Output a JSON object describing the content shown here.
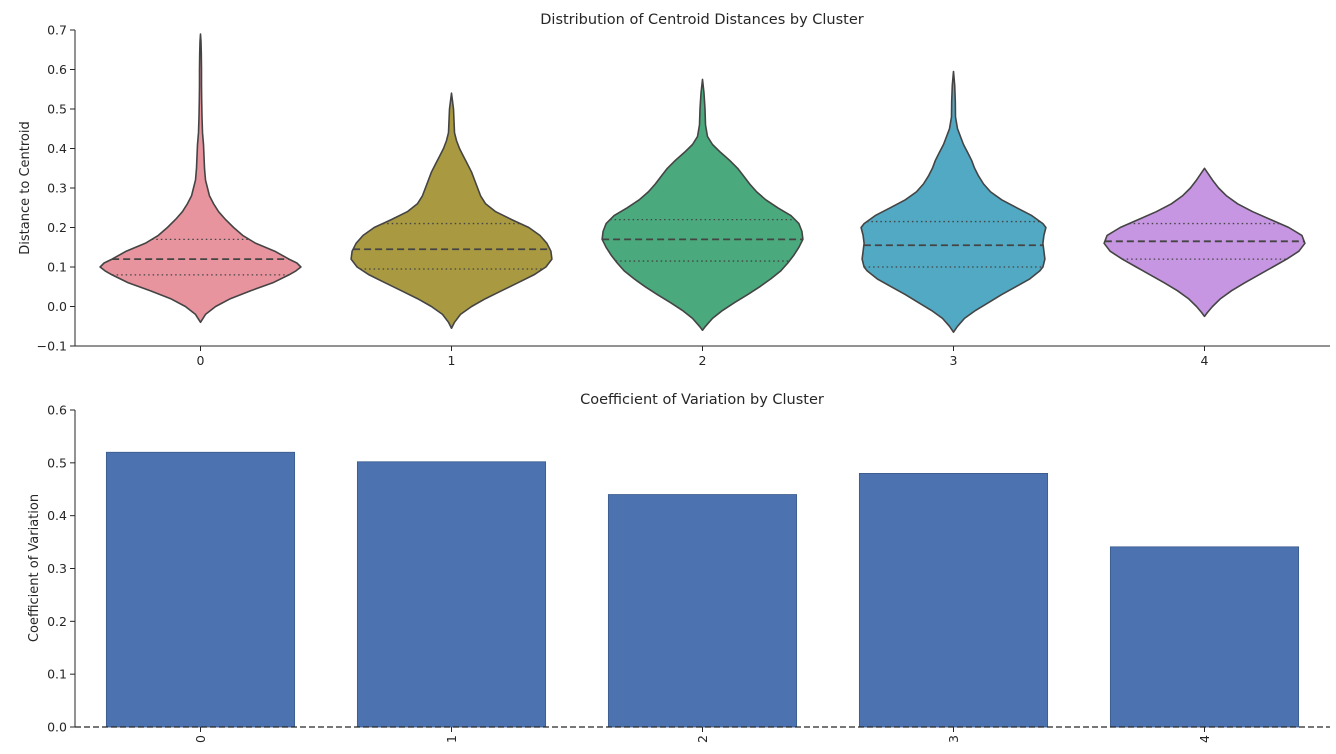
{
  "chart_data": [
    {
      "type": "violin",
      "title": "Distribution of Centroid Distances by Cluster",
      "xlabel": "",
      "ylabel": "Distance to Centroid",
      "ylim": [
        -0.1,
        0.7
      ],
      "yticks": [
        -0.1,
        0.0,
        0.1,
        0.2,
        0.3,
        0.4,
        0.5,
        0.6,
        0.7
      ],
      "ytick_labels": [
        "−0.1",
        "0.0",
        "0.1",
        "0.2",
        "0.3",
        "0.4",
        "0.5",
        "0.6",
        "0.7"
      ],
      "categories": [
        "0",
        "1",
        "2",
        "3",
        "4"
      ],
      "colors": [
        "#e8949e",
        "#a99a41",
        "#4aaa7d",
        "#52a9c3",
        "#c796e2"
      ],
      "grid": false,
      "series": [
        {
          "category": "0",
          "min": -0.04,
          "max": 0.69,
          "q1": 0.08,
          "median": 0.12,
          "q3": 0.17,
          "profile": [
            [
              -0.04,
              0.0
            ],
            [
              -0.02,
              0.05
            ],
            [
              0.0,
              0.15
            ],
            [
              0.02,
              0.3
            ],
            [
              0.04,
              0.5
            ],
            [
              0.06,
              0.72
            ],
            [
              0.08,
              0.88
            ],
            [
              0.09,
              0.95
            ],
            [
              0.1,
              1.0
            ],
            [
              0.11,
              0.96
            ],
            [
              0.12,
              0.88
            ],
            [
              0.14,
              0.74
            ],
            [
              0.16,
              0.55
            ],
            [
              0.18,
              0.42
            ],
            [
              0.2,
              0.33
            ],
            [
              0.22,
              0.25
            ],
            [
              0.24,
              0.18
            ],
            [
              0.26,
              0.13
            ],
            [
              0.28,
              0.09
            ],
            [
              0.3,
              0.07
            ],
            [
              0.32,
              0.05
            ],
            [
              0.35,
              0.04
            ],
            [
              0.38,
              0.035
            ],
            [
              0.41,
              0.03
            ],
            [
              0.44,
              0.02
            ],
            [
              0.48,
              0.015
            ],
            [
              0.52,
              0.012
            ],
            [
              0.56,
              0.01
            ],
            [
              0.6,
              0.01
            ],
            [
              0.64,
              0.008
            ],
            [
              0.67,
              0.005
            ],
            [
              0.69,
              0.0
            ]
          ]
        },
        {
          "category": "1",
          "min": -0.055,
          "max": 0.54,
          "q1": 0.095,
          "median": 0.145,
          "q3": 0.21,
          "profile": [
            [
              -0.055,
              0.0
            ],
            [
              -0.04,
              0.03
            ],
            [
              -0.02,
              0.09
            ],
            [
              0.0,
              0.2
            ],
            [
              0.02,
              0.34
            ],
            [
              0.04,
              0.5
            ],
            [
              0.06,
              0.66
            ],
            [
              0.08,
              0.82
            ],
            [
              0.1,
              0.94
            ],
            [
              0.12,
              1.0
            ],
            [
              0.14,
              0.99
            ],
            [
              0.16,
              0.95
            ],
            [
              0.18,
              0.88
            ],
            [
              0.2,
              0.77
            ],
            [
              0.22,
              0.6
            ],
            [
              0.24,
              0.44
            ],
            [
              0.26,
              0.34
            ],
            [
              0.28,
              0.29
            ],
            [
              0.3,
              0.26
            ],
            [
              0.32,
              0.23
            ],
            [
              0.34,
              0.2
            ],
            [
              0.36,
              0.16
            ],
            [
              0.38,
              0.12
            ],
            [
              0.4,
              0.08
            ],
            [
              0.42,
              0.05
            ],
            [
              0.44,
              0.03
            ],
            [
              0.47,
              0.025
            ],
            [
              0.5,
              0.02
            ],
            [
              0.52,
              0.01
            ],
            [
              0.54,
              0.0
            ]
          ]
        },
        {
          "category": "2",
          "min": -0.06,
          "max": 0.575,
          "q1": 0.115,
          "median": 0.17,
          "q3": 0.22,
          "profile": [
            [
              -0.06,
              0.0
            ],
            [
              -0.05,
              0.03
            ],
            [
              -0.03,
              0.1
            ],
            [
              -0.01,
              0.2
            ],
            [
              0.01,
              0.32
            ],
            [
              0.03,
              0.45
            ],
            [
              0.05,
              0.57
            ],
            [
              0.07,
              0.68
            ],
            [
              0.09,
              0.78
            ],
            [
              0.11,
              0.85
            ],
            [
              0.13,
              0.91
            ],
            [
              0.15,
              0.96
            ],
            [
              0.17,
              1.0
            ],
            [
              0.19,
              0.99
            ],
            [
              0.21,
              0.96
            ],
            [
              0.23,
              0.88
            ],
            [
              0.25,
              0.75
            ],
            [
              0.27,
              0.63
            ],
            [
              0.29,
              0.54
            ],
            [
              0.31,
              0.47
            ],
            [
              0.33,
              0.41
            ],
            [
              0.35,
              0.35
            ],
            [
              0.37,
              0.27
            ],
            [
              0.39,
              0.18
            ],
            [
              0.41,
              0.1
            ],
            [
              0.43,
              0.05
            ],
            [
              0.46,
              0.03
            ],
            [
              0.5,
              0.025
            ],
            [
              0.54,
              0.015
            ],
            [
              0.575,
              0.0
            ]
          ]
        },
        {
          "category": "3",
          "min": -0.065,
          "max": 0.595,
          "q1": 0.1,
          "median": 0.155,
          "q3": 0.215,
          "profile": [
            [
              -0.065,
              0.0
            ],
            [
              -0.05,
              0.04
            ],
            [
              -0.03,
              0.11
            ],
            [
              -0.01,
              0.22
            ],
            [
              0.01,
              0.35
            ],
            [
              0.03,
              0.48
            ],
            [
              0.05,
              0.62
            ],
            [
              0.07,
              0.76
            ],
            [
              0.09,
              0.86
            ],
            [
              0.1,
              0.89
            ],
            [
              0.12,
              0.91
            ],
            [
              0.14,
              0.9
            ],
            [
              0.16,
              0.89
            ],
            [
              0.18,
              0.9
            ],
            [
              0.2,
              0.92
            ],
            [
              0.21,
              0.89
            ],
            [
              0.23,
              0.78
            ],
            [
              0.25,
              0.63
            ],
            [
              0.27,
              0.48
            ],
            [
              0.29,
              0.37
            ],
            [
              0.31,
              0.3
            ],
            [
              0.33,
              0.25
            ],
            [
              0.35,
              0.21
            ],
            [
              0.37,
              0.18
            ],
            [
              0.39,
              0.14
            ],
            [
              0.41,
              0.1
            ],
            [
              0.43,
              0.07
            ],
            [
              0.45,
              0.04
            ],
            [
              0.48,
              0.02
            ],
            [
              0.52,
              0.018
            ],
            [
              0.56,
              0.012
            ],
            [
              0.595,
              0.0
            ]
          ]
        },
        {
          "category": "4",
          "min": -0.025,
          "max": 0.35,
          "q1": 0.12,
          "median": 0.165,
          "q3": 0.21,
          "profile": [
            [
              -0.025,
              0.0
            ],
            [
              -0.015,
              0.03
            ],
            [
              0.0,
              0.08
            ],
            [
              0.02,
              0.16
            ],
            [
              0.04,
              0.27
            ],
            [
              0.06,
              0.4
            ],
            [
              0.08,
              0.54
            ],
            [
              0.1,
              0.68
            ],
            [
              0.12,
              0.82
            ],
            [
              0.14,
              0.94
            ],
            [
              0.16,
              1.0
            ],
            [
              0.18,
              0.97
            ],
            [
              0.2,
              0.84
            ],
            [
              0.22,
              0.66
            ],
            [
              0.24,
              0.48
            ],
            [
              0.26,
              0.33
            ],
            [
              0.28,
              0.22
            ],
            [
              0.3,
              0.14
            ],
            [
              0.32,
              0.08
            ],
            [
              0.335,
              0.04
            ],
            [
              0.35,
              0.0
            ]
          ]
        }
      ]
    },
    {
      "type": "bar",
      "title": "Coefficient of Variation by Cluster",
      "xlabel": "",
      "ylabel": "Coefficient of Variation",
      "ylim": [
        0.0,
        0.6
      ],
      "yticks": [
        0.0,
        0.1,
        0.2,
        0.3,
        0.4,
        0.5,
        0.6
      ],
      "ytick_labels": [
        "0.0",
        "0.1",
        "0.2",
        "0.3",
        "0.4",
        "0.5",
        "0.6"
      ],
      "categories": [
        "0",
        "1",
        "2",
        "3",
        "4"
      ],
      "values": [
        0.52,
        0.502,
        0.44,
        0.48,
        0.341
      ],
      "bar_color": "#4c72b0",
      "xtick_rotation": "vertical",
      "grid": false
    }
  ]
}
